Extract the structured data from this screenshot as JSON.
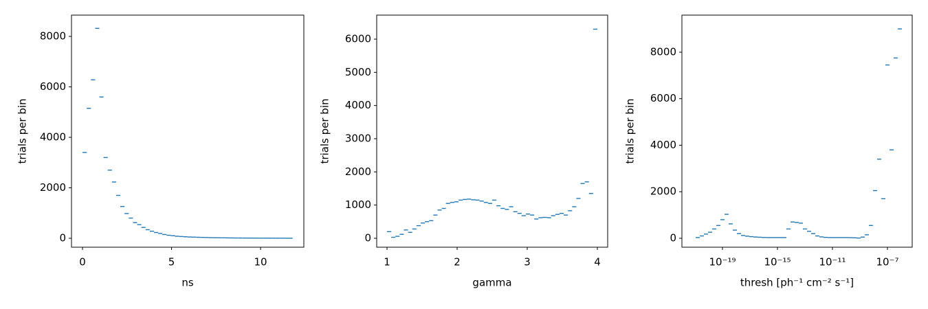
{
  "chart_data": [
    {
      "type": "histogram",
      "xlabel": "ns",
      "ylabel": "trials per bin",
      "color": "#1f77b4",
      "bins": [
        0,
        0.236,
        0.472,
        0.708,
        0.944,
        1.18,
        1.416,
        1.652,
        1.888,
        2.124,
        2.36,
        2.596,
        2.832,
        3.068,
        3.304,
        3.54,
        3.776,
        4.012,
        4.248,
        4.484,
        4.72,
        4.956,
        5.192,
        5.428,
        5.664,
        5.9,
        6.136,
        6.372,
        6.608,
        6.844,
        7.08,
        7.316,
        7.552,
        7.788,
        8.024,
        8.26,
        8.496,
        8.732,
        8.968,
        9.204,
        9.44,
        9.676,
        9.912,
        10.148,
        10.384,
        10.62,
        10.856,
        11.092,
        11.328,
        11.564,
        11.8
      ],
      "values": [
        3400,
        5150,
        6280,
        8320,
        5600,
        3200,
        2700,
        2230,
        1700,
        1260,
        980,
        800,
        620,
        540,
        430,
        340,
        280,
        230,
        190,
        150,
        120,
        100,
        80,
        70,
        60,
        50,
        45,
        40,
        35,
        30,
        25,
        22,
        20,
        18,
        15,
        13,
        11,
        10,
        9,
        8,
        7,
        6,
        5,
        5,
        4,
        4,
        3,
        3,
        2,
        2
      ],
      "xlim": [
        -0.62,
        12.43
      ],
      "ylim": [
        -354,
        8844
      ],
      "xticks": [
        0,
        5,
        10
      ],
      "yticks": [
        0,
        2000,
        4000,
        6000,
        8000
      ]
    },
    {
      "type": "histogram",
      "xlabel": "gamma",
      "ylabel": "trials per bin",
      "color": "#1f77b4",
      "bins": [
        1,
        1.06,
        1.12,
        1.18,
        1.24,
        1.3,
        1.36,
        1.42,
        1.48,
        1.54,
        1.6,
        1.66,
        1.72,
        1.78,
        1.84,
        1.9,
        1.96,
        2.02,
        2.08,
        2.14,
        2.2,
        2.26,
        2.32,
        2.38,
        2.44,
        2.5,
        2.56,
        2.62,
        2.68,
        2.74,
        2.8,
        2.86,
        2.92,
        2.98,
        3.04,
        3.1,
        3.16,
        3.22,
        3.28,
        3.34,
        3.4,
        3.46,
        3.52,
        3.58,
        3.64,
        3.7,
        3.76,
        3.82,
        3.88,
        3.94,
        4
      ],
      "values": [
        200,
        30,
        60,
        120,
        250,
        180,
        280,
        380,
        460,
        500,
        530,
        700,
        850,
        900,
        1050,
        1080,
        1100,
        1150,
        1170,
        1180,
        1160,
        1150,
        1120,
        1080,
        1050,
        1150,
        980,
        900,
        870,
        950,
        800,
        750,
        680,
        730,
        700,
        580,
        620,
        630,
        620,
        680,
        720,
        750,
        700,
        830,
        950,
        1200,
        1650,
        1700,
        1350,
        6300
      ],
      "xlim": [
        0.853,
        4.147
      ],
      "ylim": [
        -269,
        6724
      ],
      "xticks": [
        1,
        2,
        3,
        4
      ],
      "yticks": [
        0,
        1000,
        2000,
        3000,
        4000,
        5000,
        6000
      ]
    },
    {
      "type": "histogram",
      "xlabel": "thresh [ph⁻¹ cm⁻² s⁻¹]",
      "ylabel": "trials per bin",
      "color": "#1f77b4",
      "xscale": "log",
      "bins": [
        1.122e-21,
        2.239e-21,
        4.467e-21,
        8.913e-21,
        1.778e-20,
        3.548e-20,
        7.079e-20,
        1.413e-19,
        2.818e-19,
        5.623e-19,
        1.122e-18,
        2.239e-18,
        4.467e-18,
        8.913e-18,
        1.778e-17,
        3.548e-17,
        7.079e-17,
        1.413e-16,
        2.818e-16,
        5.623e-16,
        1.122e-15,
        2.239e-15,
        4.467e-15,
        8.913e-15,
        1.778e-14,
        3.548e-14,
        7.079e-14,
        1.413e-13,
        2.818e-13,
        5.623e-13,
        1.122e-12,
        2.239e-12,
        4.467e-12,
        8.913e-12,
        1.778e-11,
        3.548e-11,
        7.079e-11,
        1.413e-10,
        2.818e-10,
        5.623e-10,
        1.122e-09,
        2.239e-09,
        4.467e-09,
        8.913e-09,
        1.778e-08,
        3.548e-08,
        7.079e-08,
        1.413e-07,
        2.818e-07,
        5.623e-07,
        1.122e-06
      ],
      "values": [
        30,
        100,
        180,
        260,
        400,
        550,
        800,
        1030,
        620,
        350,
        200,
        120,
        90,
        70,
        55,
        45,
        35,
        30,
        30,
        30,
        30,
        30,
        400,
        700,
        680,
        650,
        400,
        300,
        200,
        100,
        60,
        40,
        30,
        30,
        30,
        30,
        30,
        25,
        20,
        10,
        50,
        150,
        550,
        2050,
        3400,
        1700,
        7450,
        3800,
        7750,
        9000
      ],
      "xlim": [
        1.122e-22,
        6.31e-06
      ],
      "ylim": [
        -384,
        9593
      ],
      "xticks": [
        {
          "value": 1e-19,
          "label": "10⁻¹⁹"
        },
        {
          "value": 1e-15,
          "label": "10⁻¹⁵"
        },
        {
          "value": 1e-11,
          "label": "10⁻¹¹"
        },
        {
          "value": 1e-07,
          "label": "10⁻⁷"
        }
      ],
      "yticks": [
        0,
        2000,
        4000,
        6000,
        8000
      ]
    }
  ]
}
